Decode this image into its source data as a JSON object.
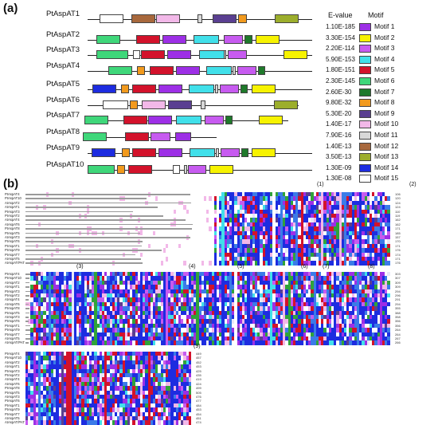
{
  "panels": {
    "a": "(a)",
    "b": "(b)"
  },
  "motif_colors": {
    "1": "#9d2fe6",
    "2": "#f7f300",
    "3": "#c75bf0",
    "4": "#41e0ea",
    "5": "#d3122b",
    "6": "#3fd77a",
    "7": "#1f7a2b",
    "8": "#f29a1d",
    "9": "#5a3f91",
    "10": "#f2b8e8",
    "11": "#d8d8d8",
    "12": "#a8683c",
    "13": "#9cae2c",
    "14": "#1d2ce0",
    "15": "#ffffff"
  },
  "genes": [
    {
      "name": "PtAspAT1",
      "evalue": "1.10E-185"
    },
    {
      "name": "PtAspAT2",
      "evalue": "3.30E-154"
    },
    {
      "name": "PtAspAT3",
      "evalue": "2.20E-114"
    },
    {
      "name": "PtAspAT4",
      "evalue": "5.90E-153"
    },
    {
      "name": "PtAspAT5",
      "evalue": "1.80E-151"
    },
    {
      "name": "PtAspAT6",
      "evalue": "2.30E-145"
    },
    {
      "name": "PtAspAT7",
      "evalue": "2.60E-30"
    },
    {
      "name": "PtAspAT8",
      "evalue": "9.80E-32"
    },
    {
      "name": "PtAspAT9",
      "evalue": "5.30E-20"
    },
    {
      "name": "PtAspAT10",
      "evalue": "1.40E-17"
    }
  ],
  "extra_evalues": [
    "7.90E-16",
    "1.40E-13",
    "3.50E-13",
    "1.30E-09",
    "1.30E-08"
  ],
  "headers": {
    "evalue": "E-value",
    "motif": "Motif"
  },
  "legend": [
    {
      "label": "Motif 1",
      "motif": "1"
    },
    {
      "label": "Motif 2",
      "motif": "2"
    },
    {
      "label": "Motif 3",
      "motif": "3"
    },
    {
      "label": "Motif 4",
      "motif": "4"
    },
    {
      "label": "Motif 5",
      "motif": "5"
    },
    {
      "label": "Motif 6",
      "motif": "6"
    },
    {
      "label": "Motif 7",
      "motif": "7"
    },
    {
      "label": "Motif 8",
      "motif": "8"
    },
    {
      "label": "Motif 9",
      "motif": "9"
    },
    {
      "label": "Motif 10",
      "motif": "10"
    },
    {
      "label": "Motif 11",
      "motif": "11"
    },
    {
      "label": "Motif 12",
      "motif": "12"
    },
    {
      "label": "Motif 13",
      "motif": "13"
    },
    {
      "label": "Motif 14",
      "motif": "14"
    },
    {
      "label": "Motif 15",
      "motif": "15"
    }
  ],
  "alignment_sequences": [
    "PtAspAT4",
    "PtAspAT10",
    "AtAspAT2",
    "AtAspAT1",
    "PtAspAT3",
    "PtAspAT2",
    "AtAspAT4",
    "AtAspAT6",
    "PtAspAT8",
    "PtAspAT5",
    "AtAspAT3",
    "PtAspAT6",
    "PtAspAT1",
    "PtAspAT9",
    "PtAspAT7",
    "AtAspAT5",
    "AtAspAT/PAT"
  ],
  "alignment_region_labels": [
    "(1)",
    "(2)",
    "(3)",
    "(4)",
    "(5)",
    "(6)",
    "(7)",
    "(8)",
    "(9)"
  ],
  "alignment_block1_numbers": [
    "106",
    "120",
    "124",
    "124",
    "110",
    "119",
    "162",
    "162",
    "171",
    "185",
    "157",
    "170",
    "171",
    "176",
    "174",
    "171",
    "176"
  ],
  "alignment_block2_numbers": [
    "303",
    "307",
    "309",
    "309",
    "294",
    "296",
    "291",
    "294",
    "355",
    "388",
    "358",
    "356",
    "356",
    "264",
    "264",
    "267",
    "266"
  ],
  "alignment_block3_numbers": [
    "449",
    "457",
    "452",
    "453",
    "425",
    "435",
    "419",
    "424",
    "499",
    "505",
    "476",
    "477",
    "484",
    "453",
    "454",
    "451",
    "474"
  ]
}
